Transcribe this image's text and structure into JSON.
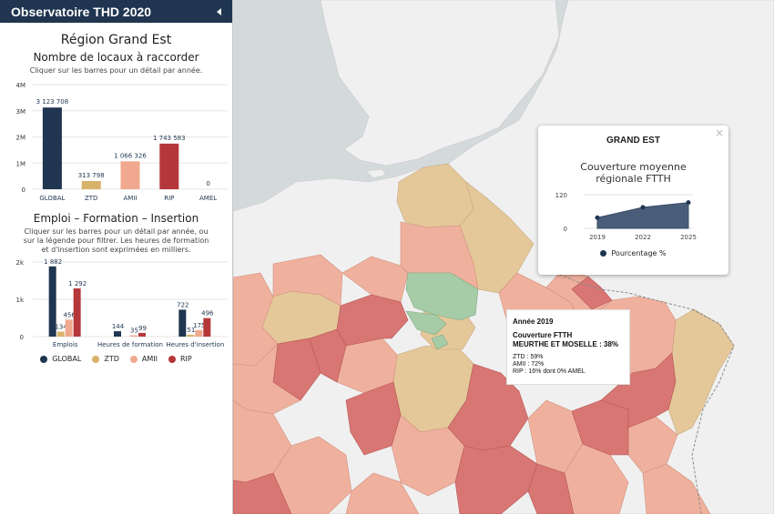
{
  "sidebar": {
    "title": "Observatoire THD 2020",
    "region": "Région Grand Est",
    "chart1": {
      "title": "Nombre de locaux à raccorder",
      "hint": "Cliquer sur les barres pour un détail par année."
    },
    "chart2": {
      "title": "Emploi – Formation – Insertion",
      "hint": "Cliquer sur les barres pour un détail par année, ou sur la légende pour filtrer. Les heures de formation et d'insertion sont exprimées en milliers."
    },
    "legend": [
      {
        "label": "GLOBAL",
        "color": "#1f3550"
      },
      {
        "label": "ZTD",
        "color": "#d9b26a"
      },
      {
        "label": "AMII",
        "color": "#f0a88f"
      },
      {
        "label": "RIP",
        "color": "#b5373a"
      }
    ]
  },
  "popup": {
    "close": "×",
    "title": "GRAND EST",
    "chart_title_line1": "Couverture moyenne",
    "chart_title_line2": "régionale FTTH",
    "legend_label": "Pourcentage %",
    "legend_color": "#4a5d78"
  },
  "tooltip": {
    "year": "Année 2019",
    "heading1": "Couverture FTTH",
    "heading2": "MEURTHE ET MOSELLE : 38%",
    "ztd": "ZTD : 59%",
    "amii": "AMII : 72%",
    "rip": "RIP : 16% dont 0% AMEL"
  },
  "colors": {
    "header_bg": "#1f3550",
    "global": "#1f3550",
    "ztd": "#d9b26a",
    "amii": "#f0a88f",
    "rip": "#b5373a",
    "map_sea": "#d4dadc",
    "map_land": "#f0f0f0",
    "map_tan": "#e4c89a",
    "map_pink": "#efb19e",
    "map_red": "#d77673",
    "map_green": "#a6cba7"
  },
  "chart_data": [
    {
      "type": "bar",
      "title": "Nombre de locaux à raccorder",
      "categories": [
        "GLOBAL",
        "ZTD",
        "AMII",
        "RIP",
        "AMEL"
      ],
      "values": [
        3123708,
        313798,
        1066326,
        1743583,
        0
      ],
      "value_labels": [
        "3 123 708",
        "313 798",
        "1 066 326",
        "1 743 583",
        "0"
      ],
      "colors": [
        "#1f3550",
        "#d9b26a",
        "#f0a88f",
        "#b5373a",
        "#b5373a"
      ],
      "y_ticks": [
        "0",
        "1M",
        "2M",
        "3M",
        "4M"
      ],
      "ylim": [
        0,
        4000000
      ]
    },
    {
      "type": "bar",
      "title": "Emploi – Formation – Insertion",
      "categories": [
        "Emplois",
        "Heures de formation",
        "Heures d'insertion"
      ],
      "series": [
        {
          "name": "GLOBAL",
          "values": [
            1882,
            144,
            722
          ],
          "labels": [
            "1 882",
            "144",
            "722"
          ]
        },
        {
          "name": "ZTD",
          "values": [
            134,
            0,
            51
          ],
          "labels": [
            "134",
            "",
            "51"
          ]
        },
        {
          "name": "AMII",
          "values": [
            456,
            35,
            175
          ],
          "labels": [
            "456",
            "35",
            "175"
          ]
        },
        {
          "name": "RIP",
          "values": [
            1292,
            99,
            496
          ],
          "labels": [
            "1 292",
            "99",
            "496"
          ]
        }
      ],
      "y_ticks": [
        "0",
        "1k",
        "2k"
      ],
      "ylim": [
        0,
        2000
      ]
    },
    {
      "type": "area",
      "title": "Couverture moyenne régionale FTTH",
      "x": [
        "2019",
        "2022",
        "2025"
      ],
      "series": [
        {
          "name": "Pourcentage %",
          "values": [
            38,
            75,
            92
          ]
        }
      ],
      "y_ticks": [
        "0",
        "120"
      ],
      "ylim": [
        0,
        120
      ]
    }
  ]
}
